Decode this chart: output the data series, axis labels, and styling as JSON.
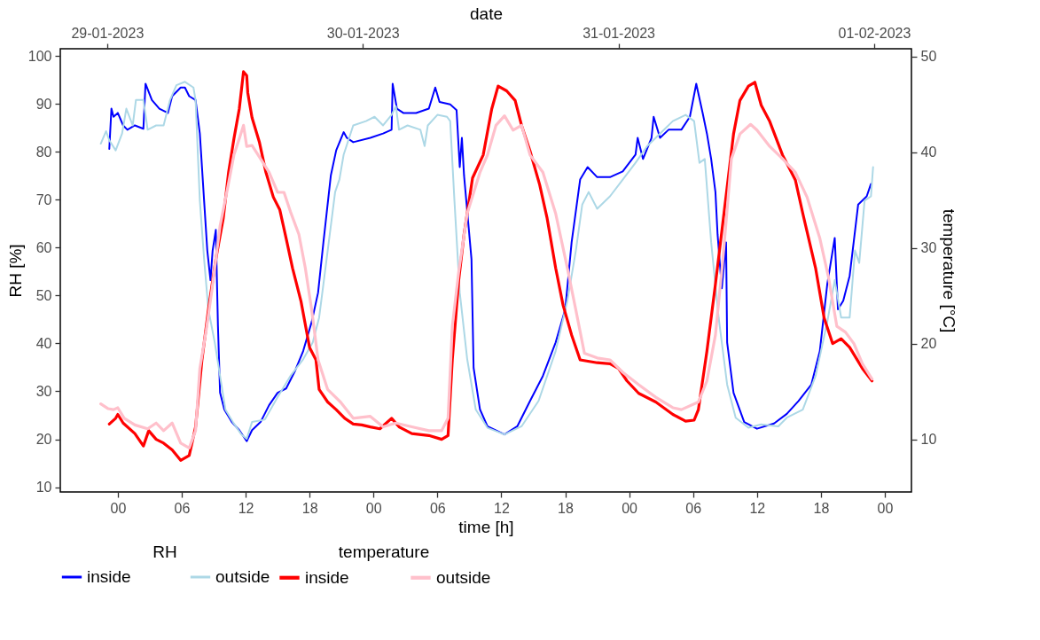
{
  "chart_data": {
    "type": "line",
    "xlabel": "time [h]",
    "x2label": "date",
    "ylabel": "RH [%]",
    "y2label": "temperature [°C]",
    "legend_title": [
      "RH",
      "temperature"
    ],
    "legend": "bottom",
    "xlim": [
      -5.4,
      74.5
    ],
    "xticks": [
      {
        "value": 0,
        "label": "00"
      },
      {
        "value": 6,
        "label": "06"
      },
      {
        "value": 12,
        "label": "12"
      },
      {
        "value": 18,
        "label": "18"
      },
      {
        "value": 24,
        "label": "00"
      },
      {
        "value": 30,
        "label": "06"
      },
      {
        "value": 36,
        "label": "12"
      },
      {
        "value": 42,
        "label": "18"
      },
      {
        "value": 48,
        "label": "00"
      },
      {
        "value": 54,
        "label": "06"
      },
      {
        "value": 60,
        "label": "12"
      },
      {
        "value": 66,
        "label": "18"
      },
      {
        "value": 72,
        "label": "00"
      }
    ],
    "x2lim": [
      "2023-01-28T19:36",
      "2023-02-01T03:30"
    ],
    "x2ticks": [
      {
        "value": "2023-01-29",
        "label": "29-01-2023"
      },
      {
        "value": "2023-01-30",
        "label": "30-01-2023"
      },
      {
        "value": "2023-01-31",
        "label": "31-01-2023"
      },
      {
        "value": "2023-02-01",
        "label": "01-02-2023"
      }
    ],
    "ylim": [
      9,
      101.5
    ],
    "yticks": [
      10,
      20,
      30,
      40,
      50,
      60,
      70,
      80,
      90,
      100
    ],
    "y2lim": [
      4.5,
      50.8
    ],
    "y2ticks": [
      10,
      20,
      30,
      40,
      50
    ],
    "series": [
      {
        "name": "inside",
        "color": "#0000ff",
        "axis": "y",
        "x": [
          -0.8,
          -0.6,
          -0.4,
          0,
          0.5,
          0.9,
          1.6,
          2.4,
          2.6,
          3.2,
          3.9,
          4.7,
          5.1,
          5.9,
          6.3,
          6.7,
          7.3,
          7.7,
          8.1,
          8.4,
          8.7,
          8.9,
          9.2,
          9.4,
          9.6,
          10,
          10.7,
          11.4,
          12.1,
          12.6,
          13.4,
          14.2,
          15,
          15.8,
          16.6,
          17.4,
          18.2,
          18.8,
          19.3,
          20,
          20.5,
          21.2,
          21.5,
          22.1,
          23.7,
          24.9,
          25.7,
          25.8,
          26.2,
          26.8,
          28,
          29.2,
          29.8,
          30.2,
          31.2,
          31.8,
          32.1,
          32.3,
          32.5,
          33.2,
          33.4,
          34,
          34.7,
          36.3,
          37.5,
          38.7,
          39.9,
          41.1,
          42,
          42.6,
          43.4,
          44.1,
          45,
          46.2,
          47.4,
          48.6,
          48.8,
          49.3,
          50.1,
          50.3,
          50.9,
          51.7,
          52.9,
          53.7,
          54.3,
          54.9,
          55.3,
          55.7,
          56.1,
          56.3,
          56.7,
          57.1,
          57.2,
          57.8,
          58.8,
          60,
          61.6,
          62.8,
          63.9,
          65.1,
          65.9,
          66.6,
          67.3,
          67.6,
          68.1,
          68.7,
          69.5,
          70.3,
          70.7
        ],
        "values": [
          80.6,
          89,
          87.3,
          88.1,
          85.5,
          84.6,
          85.5,
          84.8,
          94.2,
          90.8,
          89,
          88.1,
          91.6,
          93.4,
          93.4,
          91.6,
          90.8,
          83.8,
          69.8,
          59.4,
          53.2,
          59.4,
          63.7,
          43.7,
          29.7,
          26.2,
          23.6,
          21.9,
          19.6,
          21.9,
          23.6,
          27.1,
          29.7,
          30.6,
          34.1,
          38.4,
          44.5,
          50.6,
          61.1,
          75.1,
          80.3,
          84.1,
          82.9,
          82,
          82.9,
          83.8,
          84.6,
          94.2,
          89,
          88.1,
          88.1,
          89,
          93.4,
          90.4,
          89.9,
          88.7,
          76.8,
          82.9,
          75.1,
          57.6,
          34.9,
          26.2,
          22.7,
          21,
          22.7,
          28,
          33.2,
          40.2,
          47.1,
          61.1,
          74.2,
          76.8,
          74.7,
          74.7,
          75.9,
          79.4,
          82.9,
          78.5,
          82.9,
          87.3,
          82.9,
          84.6,
          84.6,
          87.3,
          94.2,
          88.1,
          83.8,
          78.5,
          71.6,
          62.8,
          51.5,
          61.1,
          40.2,
          29.7,
          23.6,
          22.2,
          23.3,
          25.3,
          28,
          31.4,
          38.4,
          52.4,
          62,
          47.1,
          48.9,
          54.1,
          69,
          70.7,
          73.3
        ]
      },
      {
        "name": "outside",
        "color": "#add8e6",
        "axis": "y",
        "x": [
          -1.6,
          -1.1,
          -0.8,
          -0.2,
          0.4,
          0.8,
          1.4,
          1.7,
          2.4,
          2.8,
          3.6,
          4.3,
          4.9,
          5.5,
          6.3,
          7.1,
          7.3,
          7.7,
          8.1,
          8.5,
          9.1,
          9.6,
          10.1,
          10.8,
          11.6,
          12.1,
          12.6,
          13.8,
          15,
          16.2,
          17.4,
          18.3,
          18.9,
          19.6,
          20.4,
          20.8,
          21.2,
          22.1,
          23.3,
          24.1,
          24.9,
          25.7,
          26.1,
          26.4,
          27.2,
          28.4,
          28.8,
          29.1,
          30,
          30.9,
          31.2,
          31.6,
          32.1,
          32.8,
          33.6,
          34.7,
          36.3,
          37.9,
          39.5,
          41.1,
          42.2,
          43,
          43.6,
          44.2,
          45,
          46.2,
          47.4,
          48.6,
          49.7,
          50.9,
          52.1,
          53.3,
          54.1,
          54.6,
          55.1,
          55.7,
          56.4,
          57.2,
          58,
          59.2,
          60.4,
          62,
          62.8,
          64.3,
          65.5,
          66.6,
          67.3,
          67.9,
          68.7,
          69.2,
          69.6,
          70.1,
          70.7,
          70.9
        ],
        "values": [
          81.7,
          84.3,
          82.4,
          80.3,
          83.8,
          89,
          85.5,
          90.8,
          90.8,
          84.6,
          85.5,
          85.5,
          90.8,
          93.9,
          94.6,
          93.4,
          90.8,
          69.8,
          57.6,
          47.1,
          40.2,
          33.2,
          26.2,
          23.6,
          21,
          20.1,
          23.6,
          24.1,
          28.8,
          33.2,
          36.7,
          40.2,
          45.4,
          57.6,
          71.6,
          74.2,
          79.4,
          85.5,
          86.4,
          87.3,
          85.5,
          87.7,
          89.5,
          84.6,
          85.5,
          84.6,
          81.2,
          85.5,
          87.7,
          87.3,
          86.4,
          69.8,
          50.6,
          36.7,
          26.2,
          22.4,
          21,
          22.7,
          28,
          38.4,
          48.9,
          59.4,
          69,
          71.6,
          68.1,
          70.7,
          74.2,
          77.7,
          81.2,
          83.8,
          86.4,
          87.7,
          86.4,
          77.7,
          78.5,
          61.1,
          45.4,
          31.4,
          24.5,
          22.4,
          23.1,
          22.7,
          24.5,
          26.2,
          33.2,
          44.5,
          53.2,
          45.4,
          45.4,
          59.4,
          56.8,
          69.8,
          70.7,
          76.8
        ]
      },
      {
        "name": "inside",
        "color": "#ff0000",
        "axis": "y2",
        "x": [
          -0.8,
          -0.2,
          0,
          0.5,
          1.6,
          2.4,
          2.9,
          3.6,
          4.3,
          5.1,
          5.9,
          6.7,
          7.3,
          7.9,
          8.5,
          9.2,
          9.9,
          10.4,
          10.9,
          11.4,
          11.8,
          12.1,
          12.2,
          12.6,
          13.3,
          13.9,
          14.6,
          15.2,
          15.8,
          16.4,
          17.2,
          18,
          18.6,
          18.9,
          19.7,
          20.5,
          21.3,
          22.1,
          22.9,
          23.7,
          24.6,
          25.7,
          26.4,
          27.6,
          29.2,
          30.4,
          31,
          31.4,
          32,
          32.5,
          33.3,
          34.3,
          35.1,
          35.7,
          36.5,
          37.3,
          37.9,
          38.7,
          39.6,
          40.3,
          41.1,
          41.8,
          42.6,
          43.4,
          45,
          46.2,
          47,
          47.8,
          48.9,
          50.5,
          52.1,
          53.3,
          54.1,
          54.5,
          55.3,
          56.1,
          57,
          57.8,
          58.4,
          59.2,
          59.8,
          60.4,
          61.2,
          62.4,
          63.6,
          64.3,
          65.5,
          66.3,
          67.1,
          67.9,
          68.7,
          69.9,
          70.8
        ],
        "values": [
          11.6,
          12.2,
          12.6,
          11.7,
          10.6,
          9.3,
          10.9,
          10,
          9.6,
          8.9,
          7.8,
          8.3,
          11.3,
          18.3,
          23.5,
          28.8,
          33.1,
          37.9,
          41.4,
          44.5,
          48.4,
          48,
          46.2,
          43.6,
          41,
          37.9,
          35.3,
          34,
          31,
          27.9,
          24.4,
          19.6,
          18.3,
          15.2,
          13.9,
          13.1,
          12.2,
          11.6,
          11.5,
          11.3,
          11.1,
          12.2,
          11.3,
          10.6,
          10.4,
          10,
          10.4,
          18.3,
          26.6,
          31.4,
          37.3,
          39.7,
          44.5,
          46.9,
          46.4,
          45.4,
          42.8,
          40.1,
          36.6,
          33.1,
          27.9,
          24,
          20.9,
          18.3,
          18,
          17.9,
          17.4,
          16.1,
          14.8,
          13.9,
          12.6,
          11.9,
          12,
          13.1,
          19.2,
          26.2,
          34.5,
          41.9,
          45.4,
          46.9,
          47.3,
          44.9,
          43.2,
          39.7,
          37.1,
          33.6,
          27.9,
          22.7,
          20,
          20.5,
          19.6,
          17.4,
          16.1
        ]
      },
      {
        "name": "outside",
        "color": "#ffc0cb",
        "axis": "y2",
        "x": [
          -1.6,
          -0.9,
          -0.4,
          0,
          0.6,
          1.6,
          2.8,
          3.6,
          4.3,
          5.1,
          5.9,
          6.7,
          7.3,
          7.7,
          8.3,
          8.8,
          9.6,
          10.3,
          10.9,
          11.4,
          11.8,
          12.1,
          12.6,
          13.4,
          14.2,
          15,
          15.6,
          16.2,
          17,
          17.6,
          18.2,
          18.8,
          19.7,
          20.9,
          22.1,
          23.7,
          24.9,
          26.1,
          27.6,
          29.2,
          30.4,
          31,
          31.4,
          32,
          32.8,
          34,
          34.7,
          35.5,
          36.3,
          37.1,
          37.9,
          38.7,
          39.9,
          41.1,
          42.2,
          43,
          43.8,
          45,
          46.2,
          47.4,
          48.9,
          50.5,
          52.1,
          52.9,
          54.5,
          55.3,
          56.1,
          56.8,
          57.6,
          58.4,
          59.4,
          60,
          61.2,
          62.4,
          63.6,
          64.7,
          65.9,
          66.7,
          67.5,
          68.3,
          69.1,
          69.9,
          70.8
        ],
        "values": [
          13.7,
          13.2,
          13.1,
          13.3,
          12.2,
          11.5,
          11.1,
          11.7,
          10.9,
          11.7,
          9.6,
          9.1,
          10.9,
          17.4,
          21.4,
          25.3,
          32.3,
          36.2,
          39.7,
          41.4,
          42.8,
          40.6,
          40.7,
          39.3,
          37.9,
          35.8,
          35.8,
          33.8,
          31.4,
          27.9,
          23.5,
          18.3,
          15.2,
          13.9,
          12.2,
          12.4,
          11.3,
          11.7,
          11.3,
          10.9,
          10.9,
          12.2,
          21.8,
          27.5,
          33.6,
          37.9,
          39.7,
          42.8,
          43.8,
          42.3,
          42.8,
          39.7,
          37.9,
          33.6,
          27.9,
          23.5,
          19,
          18.5,
          18.3,
          17,
          15.7,
          14.4,
          13.3,
          13.1,
          13.9,
          16.1,
          20.9,
          28.8,
          39.3,
          41.9,
          42.9,
          42.3,
          40.6,
          39.3,
          37.9,
          35.3,
          31,
          27,
          21.8,
          21.2,
          20,
          17.9,
          16.3
        ]
      }
    ]
  }
}
